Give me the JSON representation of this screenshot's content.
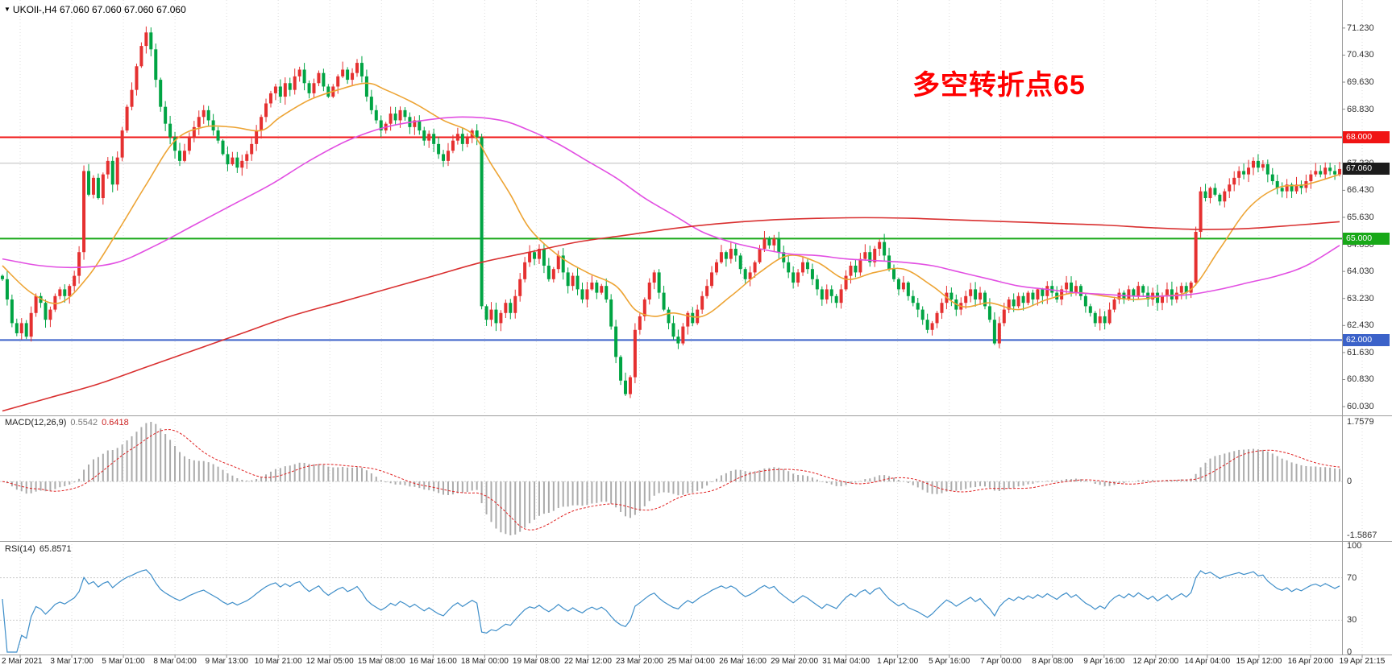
{
  "header": {
    "dropdown": "▼",
    "symbol": "UKOIl-,H4",
    "ohlc": "67.060 67.060 67.060 67.060"
  },
  "annotation": {
    "text": "多空转折点65",
    "color": "#ff0000"
  },
  "price_axis": {
    "ticks": [
      "71.230",
      "70.430",
      "69.630",
      "68.830",
      "67.230",
      "66.430",
      "65.630",
      "64.830",
      "64.030",
      "63.230",
      "62.430",
      "61.630",
      "60.830",
      "60.030"
    ],
    "badges": [
      {
        "label": "68.000",
        "value": 68.0,
        "color": "#f01414"
      },
      {
        "label": "67.060",
        "value": 67.06,
        "color": "#1c1c1c"
      },
      {
        "label": "65.000",
        "value": 65.0,
        "color": "#18a818"
      },
      {
        "label": "62.000",
        "value": 62.0,
        "color": "#3b62c9"
      }
    ]
  },
  "chart_data": {
    "type": "candlestick",
    "title": "UKOIl-,H4",
    "symbol": "UKOIl-",
    "timeframe": "H4",
    "ylim": [
      59.77,
      72.06
    ],
    "grid_step": 0.8,
    "x_labels": [
      "2 Mar 2021",
      "3 Mar 17:00",
      "5 Mar 01:00",
      "8 Mar 04:00",
      "9 Mar 13:00",
      "10 Mar 21:00",
      "12 Mar 05:00",
      "15 Mar 08:00",
      "16 Mar 16:00",
      "18 Mar 00:00",
      "19 Mar 08:00",
      "22 Mar 12:00",
      "23 Mar 20:00",
      "25 Mar 04:00",
      "26 Mar 16:00",
      "29 Mar 20:00",
      "31 Mar 04:00",
      "1 Apr 12:00",
      "5 Apr 16:00",
      "7 Apr 00:00",
      "8 Apr 08:00",
      "9 Apr 16:00",
      "12 Apr 20:00",
      "14 Apr 04:00",
      "15 Apr 12:00",
      "16 Apr 20:00",
      "19 Apr 21:15"
    ],
    "first_open": 63.9,
    "wick_seed": 7,
    "colors": {
      "up": "#e53030",
      "down": "#00a443",
      "grid": "#dedede"
    },
    "closes": [
      63.8,
      63.2,
      62.5,
      62.2,
      62.5,
      62.1,
      62.8,
      63.3,
      63.1,
      62.6,
      62.9,
      63.3,
      63.5,
      63.3,
      63.6,
      63.9,
      64.6,
      67.0,
      66.3,
      66.8,
      66.2,
      66.9,
      67.3,
      66.6,
      67.4,
      68.2,
      68.9,
      69.4,
      70.1,
      70.7,
      71.1,
      70.6,
      69.7,
      68.9,
      68.4,
      68.0,
      67.6,
      67.3,
      67.6,
      68.0,
      68.3,
      68.6,
      68.8,
      68.5,
      68.2,
      67.9,
      67.5,
      67.2,
      67.4,
      67.1,
      67.3,
      67.5,
      67.8,
      68.2,
      68.6,
      69.0,
      69.3,
      69.5,
      69.2,
      69.6,
      69.4,
      69.8,
      70.0,
      69.6,
      69.3,
      69.6,
      69.9,
      69.5,
      69.2,
      69.5,
      69.8,
      70.0,
      69.7,
      69.9,
      70.2,
      69.8,
      69.2,
      68.8,
      68.5,
      68.2,
      68.4,
      68.7,
      68.5,
      68.8,
      68.6,
      68.3,
      68.5,
      68.2,
      67.9,
      68.1,
      67.8,
      67.5,
      67.3,
      67.6,
      67.9,
      68.1,
      67.8,
      68.0,
      68.2,
      68.0,
      63.0,
      62.6,
      62.9,
      62.5,
      62.8,
      63.1,
      62.8,
      63.3,
      63.8,
      64.3,
      64.6,
      64.4,
      64.7,
      64.2,
      63.8,
      64.1,
      64.5,
      64.0,
      63.6,
      63.9,
      63.5,
      63.2,
      63.5,
      63.7,
      63.4,
      63.6,
      63.2,
      62.4,
      61.5,
      60.8,
      60.4,
      60.9,
      62.3,
      62.7,
      63.2,
      63.7,
      64.0,
      63.4,
      62.9,
      62.5,
      62.1,
      61.9,
      62.4,
      62.8,
      62.5,
      62.9,
      63.3,
      63.6,
      64.0,
      64.3,
      64.6,
      64.4,
      64.7,
      64.5,
      64.1,
      63.8,
      64.0,
      64.3,
      64.7,
      65.0,
      64.8,
      65.0,
      64.6,
      64.3,
      64.0,
      63.7,
      64.0,
      64.3,
      64.1,
      63.8,
      63.5,
      63.2,
      63.5,
      63.3,
      63.1,
      63.5,
      63.9,
      64.2,
      64.0,
      64.4,
      64.6,
      64.3,
      64.7,
      64.9,
      64.5,
      64.1,
      63.8,
      63.5,
      63.7,
      63.3,
      63.1,
      62.9,
      62.6,
      62.3,
      62.5,
      62.8,
      63.1,
      63.4,
      63.2,
      62.9,
      63.1,
      63.3,
      63.5,
      63.2,
      63.4,
      63.0,
      62.6,
      61.9,
      62.5,
      62.9,
      63.2,
      63.0,
      63.3,
      63.1,
      63.4,
      63.2,
      63.5,
      63.3,
      63.6,
      63.4,
      63.2,
      63.5,
      63.7,
      63.4,
      63.6,
      63.3,
      63.0,
      62.8,
      62.5,
      62.7,
      62.5,
      62.9,
      63.2,
      63.4,
      63.2,
      63.5,
      63.3,
      63.6,
      63.4,
      63.2,
      63.4,
      63.1,
      63.3,
      63.5,
      63.2,
      63.4,
      63.6,
      63.4,
      63.7,
      65.2,
      66.4,
      66.2,
      66.5,
      66.3,
      66.1,
      66.4,
      66.6,
      66.8,
      67.0,
      66.9,
      67.1,
      67.3,
      67.1,
      67.2,
      66.9,
      66.7,
      66.5,
      66.4,
      66.6,
      66.4,
      66.6,
      66.5,
      66.7,
      66.9,
      67.0,
      66.9,
      67.1,
      67.0,
      66.9,
      67.06
    ],
    "hlines": [
      {
        "price": 68.0,
        "color": "#f01414",
        "width": 2
      },
      {
        "price": 67.23,
        "color": "#bdbdbd",
        "width": 1
      },
      {
        "price": 65.0,
        "color": "#18a818",
        "width": 2
      },
      {
        "price": 62.0,
        "color": "#3b62c9",
        "width": 2
      }
    ],
    "ma_lines": [
      {
        "name": "ma-fast",
        "color": "#eda434",
        "points": [
          [
            0,
            64.2
          ],
          [
            6,
            63.4
          ],
          [
            12,
            63.1
          ],
          [
            18,
            63.9
          ],
          [
            24,
            65.2
          ],
          [
            30,
            66.6
          ],
          [
            36,
            67.9
          ],
          [
            42,
            68.3
          ],
          [
            48,
            68.3
          ],
          [
            54,
            68.2
          ],
          [
            58,
            68.6
          ],
          [
            64,
            69.1
          ],
          [
            70,
            69.4
          ],
          [
            76,
            69.6
          ],
          [
            80,
            69.4
          ],
          [
            86,
            69.0
          ],
          [
            92,
            68.5
          ],
          [
            98,
            68.1
          ],
          [
            102,
            67.2
          ],
          [
            106,
            66.3
          ],
          [
            110,
            65.3
          ],
          [
            116,
            64.5
          ],
          [
            122,
            64.0
          ],
          [
            128,
            63.6
          ],
          [
            132,
            62.9
          ],
          [
            136,
            62.7
          ],
          [
            140,
            62.8
          ],
          [
            146,
            62.7
          ],
          [
            152,
            63.3
          ],
          [
            158,
            64.0
          ],
          [
            164,
            64.5
          ],
          [
            170,
            64.3
          ],
          [
            176,
            63.8
          ],
          [
            182,
            64.0
          ],
          [
            188,
            64.1
          ],
          [
            194,
            63.6
          ],
          [
            200,
            63.0
          ],
          [
            206,
            63.1
          ],
          [
            212,
            62.9
          ],
          [
            218,
            63.2
          ],
          [
            224,
            63.4
          ],
          [
            230,
            63.3
          ],
          [
            236,
            63.2
          ],
          [
            242,
            63.3
          ],
          [
            248,
            63.5
          ],
          [
            254,
            64.7
          ],
          [
            260,
            65.9
          ],
          [
            266,
            66.5
          ],
          [
            272,
            66.6
          ],
          [
            279,
            66.9
          ]
        ]
      },
      {
        "name": "ma-medium",
        "color": "#e24fe2",
        "points": [
          [
            0,
            64.4
          ],
          [
            8,
            64.2
          ],
          [
            16,
            64.15
          ],
          [
            24,
            64.3
          ],
          [
            32,
            64.8
          ],
          [
            40,
            65.4
          ],
          [
            48,
            66.0
          ],
          [
            56,
            66.6
          ],
          [
            64,
            67.3
          ],
          [
            72,
            67.9
          ],
          [
            80,
            68.3
          ],
          [
            88,
            68.5
          ],
          [
            96,
            68.6
          ],
          [
            104,
            68.5
          ],
          [
            110,
            68.2
          ],
          [
            116,
            67.8
          ],
          [
            122,
            67.3
          ],
          [
            128,
            66.8
          ],
          [
            134,
            66.2
          ],
          [
            140,
            65.7
          ],
          [
            146,
            65.2
          ],
          [
            152,
            64.9
          ],
          [
            158,
            64.7
          ],
          [
            164,
            64.55
          ],
          [
            170,
            64.5
          ],
          [
            176,
            64.4
          ],
          [
            182,
            64.35
          ],
          [
            188,
            64.3
          ],
          [
            194,
            64.2
          ],
          [
            200,
            64.0
          ],
          [
            206,
            63.8
          ],
          [
            212,
            63.6
          ],
          [
            218,
            63.5
          ],
          [
            224,
            63.4
          ],
          [
            230,
            63.35
          ],
          [
            236,
            63.3
          ],
          [
            242,
            63.3
          ],
          [
            248,
            63.35
          ],
          [
            254,
            63.5
          ],
          [
            260,
            63.7
          ],
          [
            266,
            63.9
          ],
          [
            272,
            64.2
          ],
          [
            279,
            64.8
          ]
        ]
      },
      {
        "name": "ma-slow",
        "color": "#d93030",
        "points": [
          [
            0,
            59.9
          ],
          [
            10,
            60.3
          ],
          [
            20,
            60.7
          ],
          [
            30,
            61.2
          ],
          [
            40,
            61.7
          ],
          [
            50,
            62.2
          ],
          [
            60,
            62.7
          ],
          [
            70,
            63.1
          ],
          [
            80,
            63.5
          ],
          [
            90,
            63.9
          ],
          [
            100,
            64.3
          ],
          [
            110,
            64.6
          ],
          [
            120,
            64.9
          ],
          [
            130,
            65.1
          ],
          [
            140,
            65.3
          ],
          [
            150,
            65.45
          ],
          [
            160,
            65.55
          ],
          [
            170,
            65.6
          ],
          [
            180,
            65.62
          ],
          [
            190,
            65.6
          ],
          [
            200,
            65.55
          ],
          [
            210,
            65.5
          ],
          [
            220,
            65.45
          ],
          [
            230,
            65.4
          ],
          [
            240,
            65.32
          ],
          [
            250,
            65.27
          ],
          [
            260,
            65.3
          ],
          [
            270,
            65.4
          ],
          [
            279,
            65.5
          ]
        ]
      }
    ],
    "macd": {
      "params": "MACD(12,26,9)",
      "main_value": "0.5542",
      "signal_value": "0.6418",
      "ymax": 1.7579,
      "ymin": -1.5867,
      "axis_labels": [
        "1.7579",
        "0",
        "-1.5867"
      ],
      "histogram_color": "#ababab",
      "signal_color": "#e02020"
    },
    "rsi": {
      "params": "RSI(14)",
      "value": "65.8571",
      "levels": [
        70,
        30
      ],
      "axis_labels": [
        "100",
        "70",
        "30",
        "0"
      ],
      "ylim": [
        0,
        100
      ],
      "line_color": "#3e8ec9"
    }
  }
}
